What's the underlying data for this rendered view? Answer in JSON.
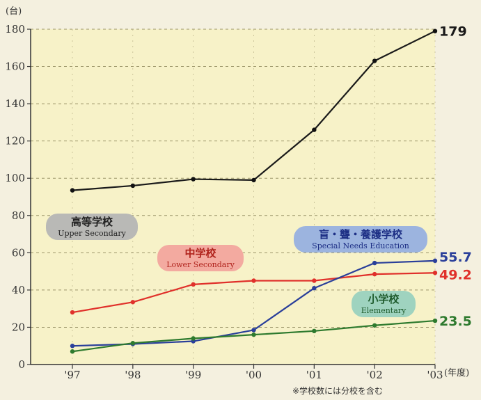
{
  "chart_data": {
    "type": "line",
    "y_unit": "(台)",
    "x_unit": "(年度)",
    "categories": [
      "'97",
      "'98",
      "'99",
      "'00",
      "'01",
      "'02",
      "'03"
    ],
    "ylim": [
      0,
      180
    ],
    "yticks": [
      0,
      20,
      40,
      60,
      80,
      100,
      120,
      140,
      160,
      180
    ],
    "grid": true,
    "note": "※学校数には分校を含む",
    "series": [
      {
        "name": "高等学校",
        "name_en": "Upper Secondary",
        "color": "#1a1a1a",
        "label_bg": "#b9b9b6",
        "label_fg": "#222222",
        "values": [
          93.5,
          96,
          99.5,
          99,
          126,
          163,
          179
        ],
        "end_label": "179"
      },
      {
        "name": "中学校",
        "name_en": "Lower Secondary",
        "color": "#e0302a",
        "label_bg": "#f3aaa0",
        "label_fg": "#b0231c",
        "values": [
          28,
          33.5,
          43,
          45,
          45,
          48.5,
          49.2
        ],
        "end_label": "49.2"
      },
      {
        "name": "盲・聾・養護学校",
        "name_en": "Special Needs Education",
        "color": "#2a3f9a",
        "label_bg": "#9cb4df",
        "label_fg": "#1d2f85",
        "values": [
          10,
          11,
          12.5,
          18.5,
          41,
          54.5,
          55.7
        ],
        "end_label": "55.7"
      },
      {
        "name": "小学校",
        "name_en": "Elementary",
        "color": "#2e7a2e",
        "label_bg": "#9fd3bf",
        "label_fg": "#1e5b2c",
        "values": [
          7,
          11.5,
          14,
          16,
          18,
          21,
          23.5
        ],
        "end_label": "23.5"
      }
    ]
  }
}
